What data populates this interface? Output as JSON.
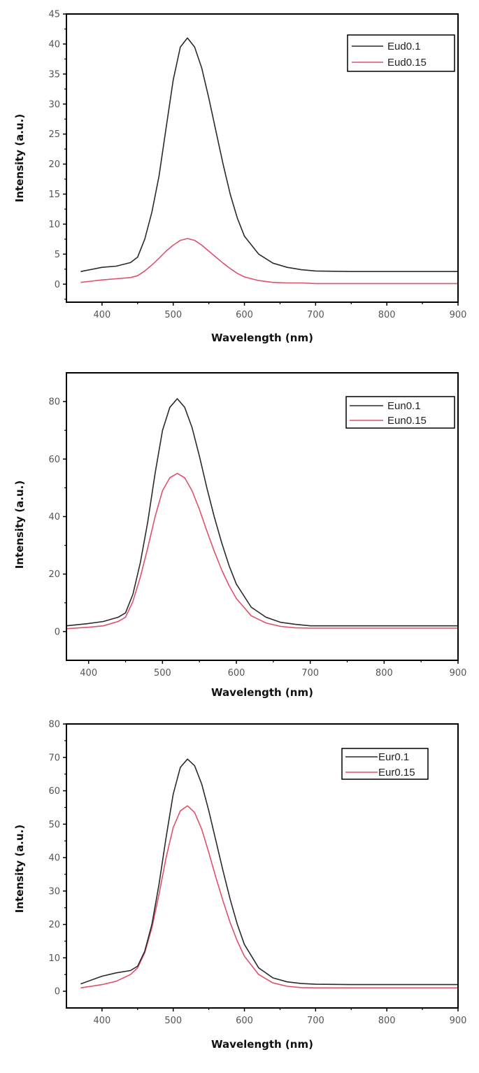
{
  "colors": {
    "series1": "#2a2a2a",
    "series2": "#e0506a",
    "axis": "#000000"
  },
  "chart_data": [
    {
      "type": "line",
      "title": "",
      "xlabel": "Wavelength (nm)",
      "ylabel": "Intensity (a.u.)",
      "xlim": [
        350,
        900
      ],
      "ylim": [
        -3,
        45
      ],
      "xticks": [
        400,
        500,
        600,
        700,
        800,
        900
      ],
      "yticks": [
        0,
        5,
        10,
        15,
        20,
        25,
        30,
        35,
        40,
        45
      ],
      "grid": false,
      "legend_position": "upper right",
      "x": [
        370,
        400,
        420,
        440,
        450,
        460,
        470,
        480,
        490,
        500,
        510,
        520,
        530,
        540,
        550,
        560,
        570,
        580,
        590,
        600,
        620,
        640,
        660,
        680,
        700,
        750,
        800,
        850,
        900
      ],
      "series": [
        {
          "name": "Eud0.1",
          "values": [
            2.1,
            2.8,
            3.0,
            3.6,
            4.5,
            7.5,
            12,
            18,
            26,
            34,
            39.5,
            41,
            39.5,
            36,
            31,
            25.5,
            20,
            15,
            11,
            8,
            5,
            3.5,
            2.8,
            2.4,
            2.2,
            2.1,
            2.1,
            2.1,
            2.1
          ]
        },
        {
          "name": "Eud0.15",
          "values": [
            0.3,
            0.7,
            0.9,
            1.1,
            1.4,
            2.2,
            3.2,
            4.3,
            5.5,
            6.5,
            7.3,
            7.6,
            7.3,
            6.5,
            5.5,
            4.5,
            3.5,
            2.6,
            1.8,
            1.2,
            0.6,
            0.3,
            0.2,
            0.2,
            0.1,
            0.1,
            0.1,
            0.1,
            0.1
          ]
        }
      ]
    },
    {
      "type": "line",
      "title": "",
      "xlabel": "Wavelength (nm)",
      "ylabel": "Intensity (a.u.)",
      "xlim": [
        370,
        900
      ],
      "ylim": [
        -10,
        90
      ],
      "xticks": [
        400,
        500,
        600,
        700,
        800,
        900
      ],
      "yticks": [
        0,
        20,
        40,
        60,
        80
      ],
      "grid": false,
      "legend_position": "upper right",
      "x": [
        370,
        400,
        420,
        440,
        450,
        460,
        470,
        480,
        490,
        500,
        510,
        520,
        530,
        540,
        550,
        560,
        570,
        580,
        590,
        600,
        620,
        640,
        660,
        680,
        700,
        750,
        800,
        850,
        900
      ],
      "series": [
        {
          "name": "Eun0.1",
          "values": [
            2,
            2.8,
            3.5,
            5,
            6.5,
            13,
            24,
            38,
            55,
            70,
            78,
            81,
            78,
            71,
            61,
            50,
            40,
            31,
            23,
            16.5,
            8.5,
            5,
            3.2,
            2.5,
            2,
            2,
            2,
            2,
            2
          ]
        },
        {
          "name": "Eun0.15",
          "values": [
            1,
            1.5,
            2,
            3.5,
            5,
            10.5,
            19,
            29,
            40,
            49,
            53.5,
            55,
            53.5,
            49,
            42.5,
            35,
            28,
            21.5,
            16,
            11.5,
            5.5,
            3,
            1.8,
            1.3,
            1.2,
            1.2,
            1.2,
            1.2,
            1.2
          ]
        }
      ]
    },
    {
      "type": "line",
      "title": "",
      "xlabel": "Wavelength (nm)",
      "ylabel": "Intensity (a.u.)",
      "xlim": [
        350,
        900
      ],
      "ylim": [
        -5,
        80
      ],
      "xticks": [
        400,
        500,
        600,
        700,
        800,
        900
      ],
      "yticks": [
        0,
        10,
        20,
        30,
        40,
        50,
        60,
        70,
        80
      ],
      "grid": false,
      "legend_position": "upper right",
      "x": [
        370,
        400,
        420,
        440,
        450,
        460,
        470,
        480,
        490,
        500,
        510,
        520,
        530,
        540,
        550,
        560,
        570,
        580,
        590,
        600,
        620,
        640,
        660,
        680,
        700,
        750,
        800,
        850,
        900
      ],
      "series": [
        {
          "name": "Eur0.1",
          "values": [
            2.2,
            4.5,
            5.5,
            6.2,
            7.5,
            12,
            20,
            32,
            46,
            59,
            67,
            69.5,
            67.5,
            62,
            54,
            45,
            36,
            27.5,
            20,
            14,
            7,
            4,
            2.8,
            2.3,
            2.1,
            2,
            2,
            2,
            2
          ]
        },
        {
          "name": "Eur0.15",
          "values": [
            1,
            2,
            3,
            5,
            7,
            11.5,
            19,
            29,
            40,
            49,
            54,
            55.5,
            53.5,
            48.5,
            41.5,
            34,
            27,
            20.5,
            15,
            10.5,
            5,
            2.5,
            1.5,
            1.1,
            1,
            1,
            1,
            1,
            1
          ]
        }
      ]
    }
  ],
  "charts": [
    {
      "ylabel": "Intensity (a.u.)",
      "xlabel": "Wavelength (nm)",
      "legend": [
        "Eud0.1",
        "Eud0.15"
      ],
      "xtick_labels": [
        "400",
        "500",
        "600",
        "700",
        "800",
        "900"
      ],
      "ytick_labels": [
        "0",
        "5",
        "10",
        "15",
        "20",
        "25",
        "30",
        "35",
        "40",
        "45"
      ]
    },
    {
      "ylabel": "Intensity (a.u.)",
      "xlabel": "Wavelength (nm)",
      "legend": [
        "Eun0.1",
        "Eun0.15"
      ],
      "xtick_labels": [
        "400",
        "500",
        "600",
        "700",
        "800",
        "900"
      ],
      "ytick_labels": [
        "0",
        "20",
        "40",
        "60",
        "80"
      ]
    },
    {
      "ylabel": "Intensity (a.u.)",
      "xlabel": "Wavelength (nm)",
      "legend": [
        "Eur0.1",
        "Eur0.15"
      ],
      "xtick_labels": [
        "400",
        "500",
        "600",
        "700",
        "800",
        "900"
      ],
      "ytick_labels": [
        "0",
        "10",
        "20",
        "30",
        "40",
        "50",
        "60",
        "70",
        "80"
      ]
    }
  ]
}
